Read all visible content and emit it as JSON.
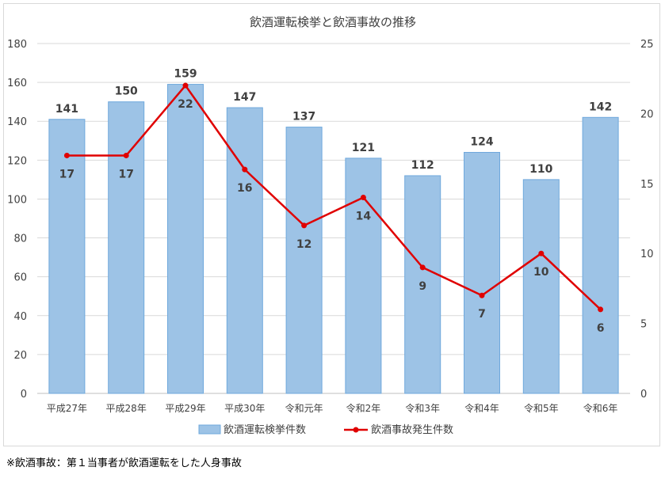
{
  "chart_data": {
    "type": "bar",
    "title": "飲酒運転検挙と飲酒事故の推移",
    "categories": [
      "平成27年",
      "平成28年",
      "平成29年",
      "平成30年",
      "令和元年",
      "令和2年",
      "令和3年",
      "令和4年",
      "令和5年",
      "令和6年"
    ],
    "series": [
      {
        "name": "飲酒運転検挙件数",
        "type": "bar",
        "axis": "left",
        "values": [
          141,
          150,
          159,
          147,
          137,
          121,
          112,
          124,
          110,
          142
        ],
        "color": "#9dc3e6"
      },
      {
        "name": "飲酒事故発生件数",
        "type": "line",
        "axis": "right",
        "values": [
          17,
          17,
          22,
          16,
          12,
          14,
          9,
          7,
          10,
          6
        ],
        "color": "#e00000"
      }
    ],
    "y_left": {
      "min": 0,
      "max": 180,
      "ticks": [
        "0",
        "20",
        "40",
        "60",
        "80",
        "100",
        "120",
        "140",
        "160",
        "180"
      ]
    },
    "y_right": {
      "min": 0,
      "max": 25,
      "ticks": [
        "0",
        "5",
        "10",
        "15",
        "20",
        "25"
      ]
    },
    "grid": true,
    "legend": "bottom"
  },
  "footnote": "※飲酒事故：第１当事者が飲酒運転をした人身事故"
}
